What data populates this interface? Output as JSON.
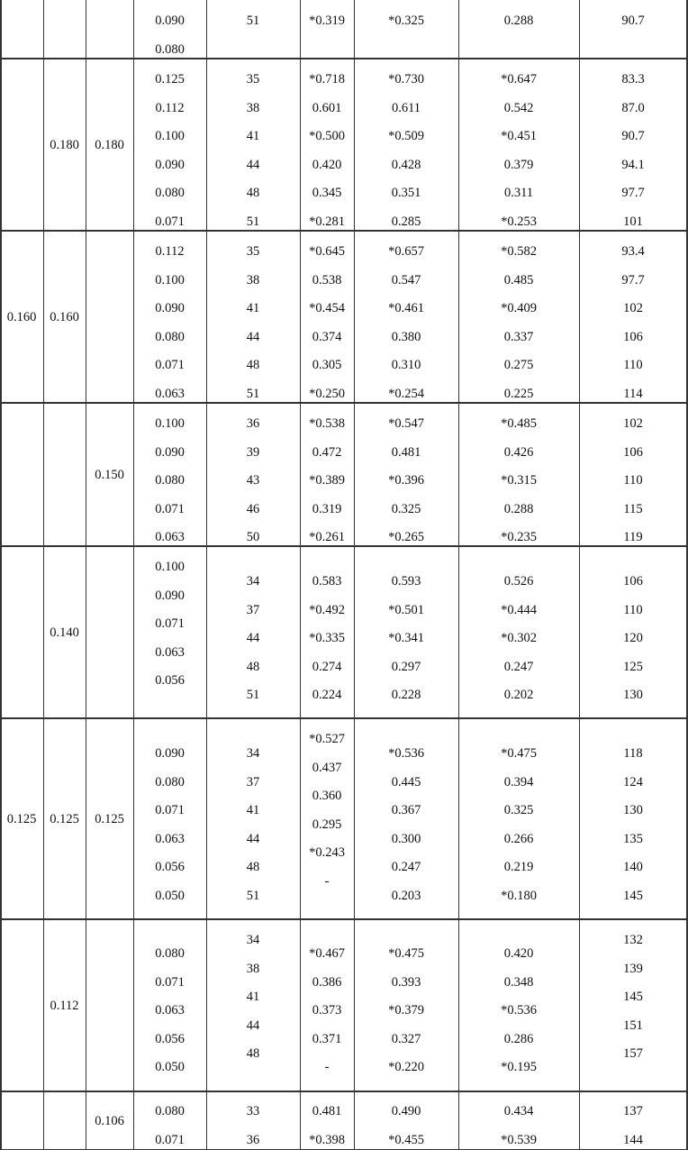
{
  "table": {
    "groups": [
      {
        "cols": [
          [],
          [],
          [],
          [
            "0.090",
            "0.080"
          ],
          [
            "51"
          ],
          [
            "*0.319"
          ],
          [
            "*0.325"
          ],
          [
            "0.288"
          ],
          [
            "90.7"
          ]
        ]
      },
      {
        "cols": [
          [],
          [
            "0.180"
          ],
          [
            "0.180"
          ],
          [
            "0.125",
            "0.112",
            "0.100",
            "0.090",
            "0.080",
            "0.071"
          ],
          [
            "35",
            "38",
            "41",
            "44",
            "48",
            "51"
          ],
          [
            "*0.718",
            "0.601",
            "*0.500",
            "0.420",
            "0.345",
            "*0.281"
          ],
          [
            "*0.730",
            "0.611",
            "*0.509",
            "0.428",
            "0.351",
            "0.285"
          ],
          [
            "*0.647",
            "0.542",
            "*0.451",
            "0.379",
            "0.311",
            "*0.253"
          ],
          [
            "83.3",
            "87.0",
            "90.7",
            "94.1",
            "97.7",
            "101"
          ]
        ]
      },
      {
        "cols": [
          [
            "0.160"
          ],
          [
            "0.160"
          ],
          [],
          [
            "0.112",
            "0.100",
            "0.090",
            "0.080",
            "0.071",
            "0.063"
          ],
          [
            "35",
            "38",
            "41",
            "44",
            "48",
            "51"
          ],
          [
            "*0.645",
            "0.538",
            "*0.454",
            "0.374",
            "0.305",
            "*0.250"
          ],
          [
            "*0.657",
            "0.547",
            "*0.461",
            "0.380",
            "0.310",
            "*0.254"
          ],
          [
            "*0.582",
            "0.485",
            "*0.409",
            "0.337",
            "0.275",
            "0.225"
          ],
          [
            "93.4",
            "97.7",
            "102",
            "106",
            "110",
            "114"
          ]
        ]
      },
      {
        "cols": [
          [],
          [],
          [
            "0.150"
          ],
          [
            "0.100",
            "0.090",
            "0.080",
            "0.071",
            "0.063"
          ],
          [
            "36",
            "39",
            "43",
            "46",
            "50"
          ],
          [
            "*0.538",
            "0.472",
            "*0.389",
            "0.319",
            "*0.261"
          ],
          [
            "*0.547",
            "0.481",
            "*0.396",
            "0.325",
            "*0.265"
          ],
          [
            "*0.485",
            "0.426",
            "*0.315",
            "0.288",
            "*0.235"
          ],
          [
            "102",
            "106",
            "110",
            "115",
            "119"
          ]
        ]
      },
      {
        "cols": [
          [],
          [
            "0.140"
          ],
          [],
          [
            "0.100",
            "0.090",
            "0.071",
            "0.063",
            "0.056"
          ],
          [
            "34",
            "37",
            "44",
            "48",
            "51"
          ],
          [
            "0.583",
            "*0.492",
            "*0.335",
            "0.274",
            "0.224"
          ],
          [
            "0.593",
            "*0.501",
            "*0.341",
            "0.297",
            "0.228"
          ],
          [
            "0.526",
            "*0.444",
            "*0.302",
            "0.247",
            "0.202"
          ],
          [
            "106",
            "110",
            "120",
            "125",
            "130"
          ]
        ]
      },
      {
        "cols": [
          [
            "0.125"
          ],
          [
            "0.125"
          ],
          [
            "0.125"
          ],
          [
            "0.090",
            "0.080",
            "0.071",
            "0.063",
            "0.056",
            "0.050"
          ],
          [
            "34",
            "37",
            "41",
            "44",
            "48",
            "51"
          ],
          [
            "*0.527",
            "0.437",
            "0.360",
            "0.295",
            "*0.243",
            "-"
          ],
          [
            "*0.536",
            "0.445",
            "0.367",
            "0.300",
            "0.247",
            "0.203"
          ],
          [
            "*0.475",
            "0.394",
            "0.325",
            "0.266",
            "0.219",
            "*0.180"
          ],
          [
            "118",
            "124",
            "130",
            "135",
            "140",
            "145"
          ]
        ]
      },
      {
        "cols": [
          [],
          [
            "0.112"
          ],
          [],
          [
            "0.080",
            "0.071",
            "0.063",
            "0.056",
            "0.050"
          ],
          [
            "34",
            "38",
            "41",
            "44",
            "48"
          ],
          [
            "*0.467",
            "0.386",
            "0.373",
            "0.371",
            "-"
          ],
          [
            "*0.475",
            "0.393",
            "*0.379",
            "0.327",
            "*0.220"
          ],
          [
            "0.420",
            "0.348",
            "*0.536",
            "0.286",
            "*0.195"
          ],
          [
            "132",
            "139",
            "145",
            "151",
            "157"
          ]
        ]
      },
      {
        "cols": [
          [],
          [],
          [
            "0.106"
          ],
          [
            "0.080",
            "0.071"
          ],
          [
            "33",
            "36"
          ],
          [
            "0.481",
            "*0.398"
          ],
          [
            "0.490",
            "*0.455"
          ],
          [
            "0.434",
            "*0.539"
          ],
          [
            "137",
            "144"
          ]
        ]
      }
    ]
  }
}
